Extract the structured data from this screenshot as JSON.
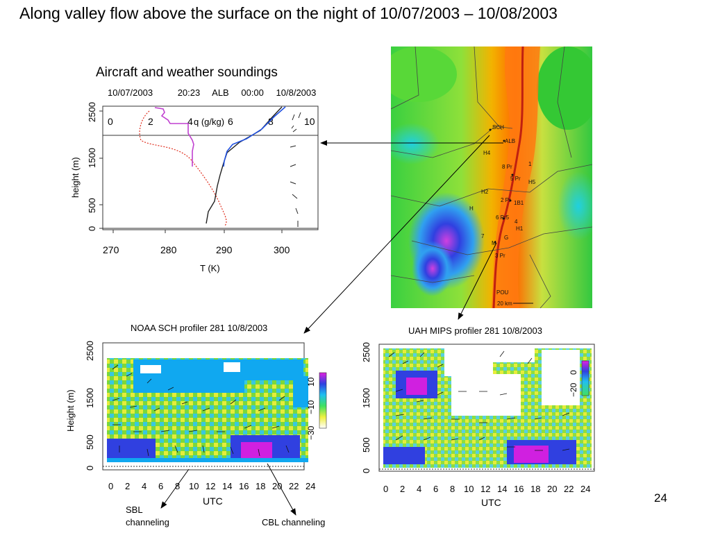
{
  "slide": {
    "title": "Along valley flow above the surface on the night of 10/07/2003 – 10/08/2003",
    "number": "24"
  },
  "sounding": {
    "heading": "Aircraft and weather soundings",
    "header_parts": [
      "10/07/2003",
      "20:23",
      "ALB",
      "00:00",
      "10/8/2003"
    ],
    "y_label": "height (m)",
    "x_label": "T (K)",
    "y_ticks": [
      "0",
      "500",
      "1500",
      "2500"
    ],
    "x_ticks": [
      "270",
      "280",
      "290",
      "300"
    ],
    "q_ticks": [
      "0",
      "2",
      "4",
      "6",
      "8",
      "10"
    ],
    "q_label": "q (g/kg)"
  },
  "map": {
    "labels": [
      "SCH",
      "ALB",
      "H4",
      "8 Pr",
      "1",
      "5 Pr",
      "H5",
      "H2",
      "2 Pr",
      "1B1",
      "H",
      "6 Pr5",
      "4",
      "H1",
      "G",
      "7",
      "M",
      "3 Pr",
      "POU",
      "20 km"
    ]
  },
  "profiler_left": {
    "title": "NOAA SCH profiler 281 10/8/2003",
    "y_label": "Height (m)",
    "y_ticks": [
      "0",
      "500",
      "1500",
      "2500"
    ],
    "x_ticks": [
      "0",
      "2",
      "4",
      "6",
      "8",
      "10",
      "12",
      "14",
      "16",
      "18",
      "20",
      "22",
      "24"
    ],
    "x_label": "UTC",
    "colorbar_ticks": [
      "10",
      "−10",
      "−30"
    ]
  },
  "profiler_right": {
    "title": "UAH MIPS profiler 281 10/8/2003",
    "y_ticks": [
      "0",
      "500",
      "1500",
      "2500"
    ],
    "x_ticks": [
      "0",
      "2",
      "4",
      "6",
      "8",
      "10",
      "12",
      "14",
      "16",
      "18",
      "20",
      "22",
      "24"
    ],
    "x_label": "UTC",
    "colorbar_ticks": [
      "0",
      "−20"
    ]
  },
  "annotations": {
    "sbl": [
      "SBL",
      "channeling"
    ],
    "cbl": "CBL channeling"
  },
  "colors": {
    "q_aircraft": "#c040d0",
    "q_sonde": "#e03020",
    "t_sonde": "#202020",
    "t_aircraft": "#2050e0",
    "river": "#c02010"
  }
}
